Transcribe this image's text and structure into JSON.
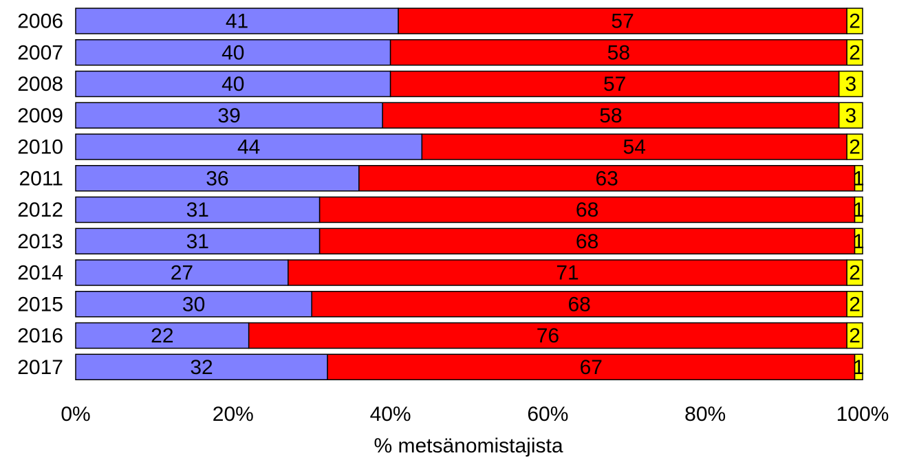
{
  "chart_data": {
    "type": "bar",
    "orientation": "horizontal",
    "stacked": "percent",
    "categories": [
      "2006",
      "2007",
      "2008",
      "2009",
      "2010",
      "2011",
      "2012",
      "2013",
      "2014",
      "2015",
      "2016",
      "2017"
    ],
    "series": [
      {
        "color": "#8080ff",
        "values": [
          41,
          40,
          40,
          39,
          44,
          36,
          31,
          31,
          27,
          30,
          22,
          32
        ]
      },
      {
        "color": "#ff0000",
        "values": [
          57,
          58,
          57,
          58,
          54,
          63,
          68,
          68,
          71,
          68,
          76,
          67
        ]
      },
      {
        "color": "#ffff00",
        "values": [
          2,
          2,
          3,
          3,
          2,
          1,
          1,
          1,
          2,
          2,
          2,
          1
        ]
      }
    ],
    "xlim": [
      0,
      100
    ],
    "x_ticks": [
      "0%",
      "20%",
      "40%",
      "60%",
      "80%",
      "100%"
    ],
    "xlabel": "% metsänomistajista",
    "ylabel": "",
    "title": "",
    "grid": false,
    "legend": "none"
  }
}
